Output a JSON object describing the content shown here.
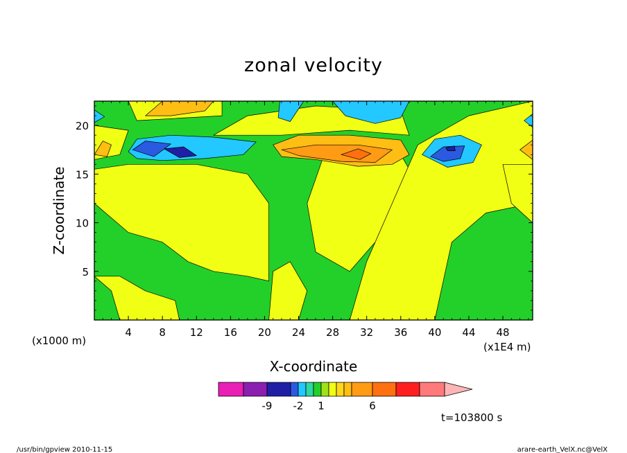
{
  "footer": {
    "left": "/usr/bin/gpview   2010-11-15",
    "right": "arare-earth_VelX.nc@VelX"
  },
  "time_label": "t=103800 s",
  "chart_data": {
    "type": "heatmap",
    "title": "zonal velocity",
    "xlabel": "X-coordinate",
    "ylabel": "Z-coordinate",
    "x_scale_label": "(x1E4 m)",
    "y_scale_label": "(x1000 m)",
    "xlim": [
      0,
      51.5
    ],
    "ylim": [
      0,
      22.5
    ],
    "x_ticks": [
      4,
      8,
      12,
      16,
      20,
      24,
      28,
      32,
      36,
      40,
      44,
      48
    ],
    "y_ticks": [
      5,
      10,
      15,
      20
    ],
    "grid": false,
    "colorbar": {
      "orientation": "horizontal",
      "colors": [
        "#e91fb6",
        "#8a1fb0",
        "#1f1fa6",
        "#2a5ae0",
        "#22c8ff",
        "#2ed8a0",
        "#23d02a",
        "#9fe21c",
        "#f0ff14",
        "#ffd61c",
        "#ffbe14",
        "#ff9b14",
        "#ff7010",
        "#ff1f1f",
        "#ff7a7a",
        "#ffb5b5"
      ],
      "tick_labels": [
        "-9",
        "-2",
        "1",
        "6"
      ]
    },
    "regions": [
      {
        "level": "positive",
        "color": "#f0ff14",
        "polygon": [
          [
            0,
            12
          ],
          [
            4,
            9
          ],
          [
            8,
            8
          ],
          [
            11,
            6
          ],
          [
            14,
            5
          ],
          [
            18,
            4.5
          ],
          [
            20.5,
            4
          ],
          [
            20.5,
            12
          ],
          [
            18,
            15
          ],
          [
            12,
            16
          ],
          [
            4,
            16
          ],
          [
            0,
            15.5
          ]
        ]
      },
      {
        "level": "positive",
        "color": "#f0ff14",
        "polygon": [
          [
            0,
            4.5
          ],
          [
            2,
            3
          ],
          [
            3,
            0
          ],
          [
            10,
            0
          ],
          [
            9.5,
            2
          ],
          [
            6,
            3
          ],
          [
            3,
            4.5
          ]
        ]
      },
      {
        "level": "positive",
        "color": "#f0ff14",
        "polygon": [
          [
            20.5,
            0
          ],
          [
            24,
            0
          ],
          [
            25,
            3
          ],
          [
            23,
            6
          ],
          [
            21,
            5
          ]
        ]
      },
      {
        "level": "positive",
        "color": "#f0ff14",
        "polygon": [
          [
            26,
            7
          ],
          [
            30,
            5
          ],
          [
            33,
            8
          ],
          [
            36,
            11
          ],
          [
            38,
            14
          ],
          [
            36,
            17
          ],
          [
            32,
            18
          ],
          [
            27,
            17
          ],
          [
            25,
            12
          ]
        ]
      },
      {
        "level": "positive",
        "color": "#f0ff14",
        "polygon": [
          [
            30,
            0
          ],
          [
            40,
            0
          ],
          [
            41,
            4
          ],
          [
            42,
            8
          ],
          [
            46,
            11
          ],
          [
            51.5,
            12
          ],
          [
            51.5,
            22.5
          ],
          [
            44,
            21
          ],
          [
            38,
            18
          ],
          [
            35,
            12
          ],
          [
            32,
            6
          ]
        ]
      },
      {
        "level": "positive",
        "color": "#f0ff14",
        "polygon": [
          [
            14,
            19
          ],
          [
            22,
            19
          ],
          [
            30,
            19.5
          ],
          [
            37,
            19
          ],
          [
            36,
            21.5
          ],
          [
            26,
            22
          ],
          [
            18,
            21
          ]
        ]
      },
      {
        "level": "positive",
        "color": "#f0ff14",
        "polygon": [
          [
            48,
            16
          ],
          [
            51.5,
            16
          ],
          [
            51.5,
            10
          ],
          [
            49,
            12
          ]
        ]
      },
      {
        "level": "positive",
        "color": "#f0ff14",
        "polygon": [
          [
            0,
            16.5
          ],
          [
            3,
            17
          ],
          [
            4,
            19.5
          ],
          [
            0,
            20
          ]
        ]
      },
      {
        "level": "positive",
        "color": "#f0ff14",
        "polygon": [
          [
            5,
            20.5
          ],
          [
            15,
            21
          ],
          [
            15,
            22.5
          ],
          [
            4,
            22.5
          ]
        ]
      },
      {
        "level": "positive",
        "color": "#ffbe14",
        "polygon": [
          [
            6,
            21
          ],
          [
            8,
            22.5
          ],
          [
            14,
            22.5
          ],
          [
            13,
            21.5
          ],
          [
            9,
            21
          ]
        ]
      },
      {
        "level": "positive",
        "color": "#ffbe14",
        "polygon": [
          [
            21,
            18
          ],
          [
            24,
            19
          ],
          [
            30,
            19
          ],
          [
            36,
            18.5
          ],
          [
            37,
            17
          ],
          [
            35,
            16
          ],
          [
            31,
            15.8
          ],
          [
            26,
            16.5
          ],
          [
            22,
            16.8
          ]
        ]
      },
      {
        "level": "positive",
        "color": "#ff9b14",
        "polygon": [
          [
            22,
            17.5
          ],
          [
            26,
            18
          ],
          [
            31,
            18
          ],
          [
            35,
            17.5
          ],
          [
            33,
            16.2
          ],
          [
            29,
            16.3
          ],
          [
            24,
            16.9
          ]
        ]
      },
      {
        "level": "positive",
        "color": "#ff7010",
        "polygon": [
          [
            29,
            17
          ],
          [
            31,
            17.6
          ],
          [
            32.5,
            17.1
          ],
          [
            31.2,
            16.5
          ]
        ]
      },
      {
        "level": "positive",
        "color": "#ffbe14",
        "polygon": [
          [
            0,
            17
          ],
          [
            1,
            18.4
          ],
          [
            2,
            18
          ],
          [
            1.5,
            16.8
          ]
        ]
      },
      {
        "level": "positive",
        "color": "#ffbe14",
        "polygon": [
          [
            50,
            17.5
          ],
          [
            51.5,
            18.5
          ],
          [
            51.5,
            16.5
          ]
        ]
      },
      {
        "level": "negative",
        "color": "#22c8ff",
        "polygon": [
          [
            4,
            17.3
          ],
          [
            5,
            18.6
          ],
          [
            9,
            19
          ],
          [
            14,
            18.8
          ],
          [
            19,
            18.3
          ],
          [
            17.5,
            17
          ],
          [
            13,
            16.6
          ],
          [
            8,
            16.4
          ],
          [
            5,
            16.6
          ]
        ]
      },
      {
        "level": "negative",
        "color": "#2a5ae0",
        "polygon": [
          [
            4.5,
            17.5
          ],
          [
            6,
            18.4
          ],
          [
            9,
            18.1
          ],
          [
            7,
            16.8
          ]
        ]
      },
      {
        "level": "negative",
        "color": "#1f1fa6",
        "polygon": [
          [
            8.2,
            17.6
          ],
          [
            10.5,
            17.8
          ],
          [
            12,
            16.9
          ],
          [
            10,
            16.7
          ]
        ]
      },
      {
        "level": "negative",
        "color": "#22c8ff",
        "polygon": [
          [
            38.5,
            17
          ],
          [
            40,
            18.6
          ],
          [
            43,
            19
          ],
          [
            45.5,
            18
          ],
          [
            44.5,
            16.2
          ],
          [
            41.5,
            15.7
          ]
        ]
      },
      {
        "level": "negative",
        "color": "#2a5ae0",
        "polygon": [
          [
            39.5,
            16.8
          ],
          [
            41,
            17.8
          ],
          [
            43.5,
            17.9
          ],
          [
            43,
            16.6
          ],
          [
            41,
            16.3
          ]
        ]
      },
      {
        "level": "negative",
        "color": "#1f1fa6",
        "polygon": [
          [
            41.3,
            17.7
          ],
          [
            42.3,
            17.9
          ],
          [
            42.4,
            17.4
          ],
          [
            41.5,
            17.4
          ]
        ]
      },
      {
        "level": "negative",
        "color": "#22c8ff",
        "polygon": [
          [
            21.8,
            22.5
          ],
          [
            21.6,
            20.8
          ],
          [
            23,
            20.4
          ],
          [
            24.6,
            22.5
          ]
        ]
      },
      {
        "level": "negative",
        "color": "#22c8ff",
        "polygon": [
          [
            28,
            22.5
          ],
          [
            29.5,
            21
          ],
          [
            33,
            20.2
          ],
          [
            36,
            20.8
          ],
          [
            37,
            22.5
          ]
        ]
      },
      {
        "level": "negative",
        "color": "#22c8ff",
        "polygon": [
          [
            51.5,
            21.2
          ],
          [
            50.5,
            20.5
          ],
          [
            51.5,
            19.8
          ]
        ]
      },
      {
        "level": "negative",
        "color": "#22c8ff",
        "polygon": [
          [
            0,
            20.3
          ],
          [
            1.2,
            20.9
          ],
          [
            0,
            21.6
          ]
        ]
      }
    ]
  }
}
